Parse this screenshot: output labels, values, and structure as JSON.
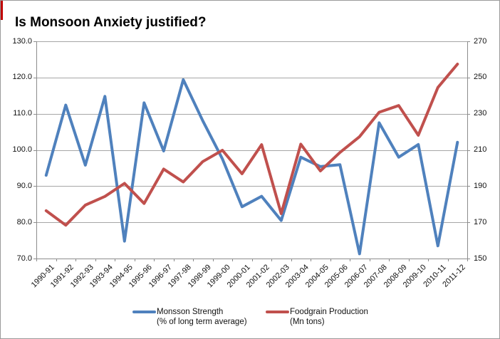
{
  "window": {
    "background": "#ffffff",
    "border_color": "#9a9a9a",
    "corner_mark_color": "#c00000"
  },
  "chart_data": {
    "type": "line",
    "title": "Is Monsoon Anxiety justified?",
    "grid": true,
    "legend_position": "bottom",
    "categories": [
      "1990-91",
      "1991-92",
      "1992-93",
      "1993-94",
      "1994-95",
      "1995-96",
      "1996-97",
      "1997-98",
      "1998-99",
      "1999-00",
      "2000-01",
      "2001-02",
      "2002-03",
      "2003-04",
      "2004-05",
      "2005-06",
      "2006-07",
      "2007-08",
      "2008-09",
      "2009-10",
      "2010-11",
      "2011-12"
    ],
    "series": [
      {
        "name": "Monsson Strength (% of long term average)",
        "axis": "left",
        "color": "#4F81BD",
        "values": [
          93.0,
          112.4,
          95.8,
          114.8,
          74.8,
          113.0,
          99.7,
          119.4,
          108.0,
          97.5,
          84.3,
          87.2,
          80.5,
          98.0,
          95.4,
          95.9,
          71.3,
          107.5,
          98.0,
          101.5,
          73.5,
          102.1
        ]
      },
      {
        "name": "Foodgrain Production (Mn tons)",
        "axis": "right",
        "color": "#C0504D",
        "values": [
          176.4,
          168.4,
          179.5,
          184.3,
          191.5,
          180.4,
          199.4,
          192.3,
          203.6,
          209.8,
          196.8,
          212.9,
          174.8,
          213.2,
          198.4,
          208.6,
          217.3,
          230.8,
          234.5,
          218.1,
          244.5,
          257.4
        ]
      }
    ],
    "left_axis": {
      "min": 70,
      "max": 130,
      "tick_step": 10,
      "tick_labels": [
        "70.0",
        "80.0",
        "90.0",
        "100.0",
        "110.0",
        "120.0",
        "130.0"
      ]
    },
    "right_axis": {
      "min": 150,
      "max": 270,
      "tick_step": 20,
      "tick_labels": [
        "150",
        "170",
        "190",
        "210",
        "230",
        "250",
        "270"
      ]
    },
    "gridline_color": "#A6A6A6",
    "axis_line_color": "#8C8C8C"
  },
  "legend": {
    "monsoon_label": "Monsson Strength",
    "monsoon_sub": "(% of long term average)",
    "foodgrain_label": "Foodgrain Production",
    "foodgrain_sub": "(Mn tons)"
  }
}
